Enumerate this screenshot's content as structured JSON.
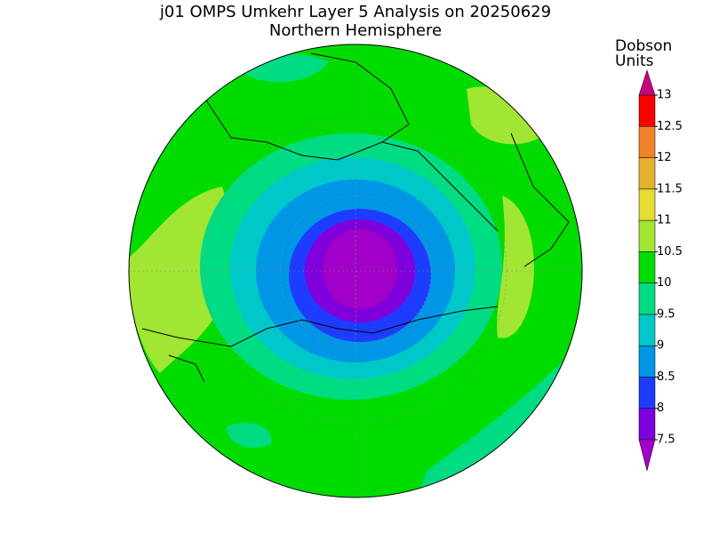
{
  "title": "j01 OMPS Umkehr Layer 5 Analysis on 20250629",
  "subtitle": "Northern Hemisphere",
  "colorbar": {
    "label": [
      "Dobson",
      "Units"
    ],
    "levels": [
      7.5,
      8,
      8.5,
      9,
      9.5,
      10,
      10.5,
      11,
      11.5,
      12,
      12.5,
      13
    ],
    "colors": [
      "#7f00dc",
      "#1e3cff",
      "#0096e6",
      "#00c8c8",
      "#00dc82",
      "#00dc00",
      "#a0e632",
      "#e6dc32",
      "#e6af2d",
      "#f08228",
      "#fa0000"
    ],
    "under_color": "#a000c8",
    "over_color": "#c80082"
  }
}
